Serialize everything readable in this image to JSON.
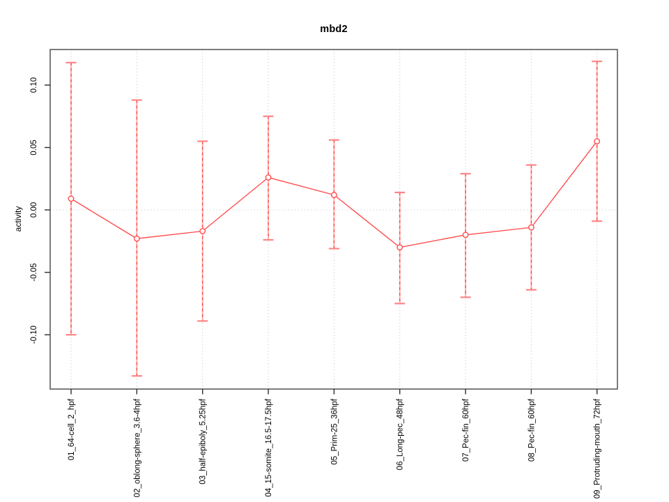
{
  "chart_data": {
    "type": "line",
    "title": "mbd2",
    "xlabel": "",
    "ylabel": "activity",
    "legend": "none",
    "grid": "dotted vertical gridline per category, dotted horizontal line at y=0",
    "ylim": [
      -0.1435,
      0.1285
    ],
    "yticks": [
      0.1,
      0.05,
      0.0,
      -0.05,
      -0.1
    ],
    "ytick_labels": [
      "0.10",
      "0.05",
      "0.00",
      "-0.05",
      "-0.10"
    ],
    "categories": [
      "01_64-cell_2_hpf",
      "02_oblong-sphere_3.6-4hpf",
      "03_half-epiboly_5.25hpf",
      "04_15-somite_16.5-17.5hpf",
      "05_Prim-25_36hpf",
      "06_Long-pec_48hpf",
      "07_Pec-fin_60hpf",
      "08_Pec-fin_60hpf",
      "09_Protruding-mouth_72hpf"
    ],
    "series": [
      {
        "name": "mbd2 activity",
        "marker": "open-circle",
        "values": [
          0.009,
          -0.023,
          -0.017,
          0.026,
          0.012,
          -0.03,
          -0.02,
          -0.014,
          0.055
        ],
        "upper": [
          0.118,
          0.088,
          0.055,
          0.075,
          0.056,
          0.014,
          0.029,
          0.036,
          0.119
        ],
        "lower": [
          -0.1,
          -0.133,
          -0.089,
          -0.024,
          -0.031,
          -0.075,
          -0.07,
          -0.064,
          -0.009
        ]
      }
    ]
  },
  "colors": {
    "background": "#ffffff",
    "line": "#ff4d4d",
    "error_bar_base": "#ffb0b0",
    "error_bar_dash": "#f8433c",
    "cap": "#ff8585",
    "point_stroke": "#ff4d4d",
    "point_fill": "#ffffff",
    "grid": "#d2d2d2",
    "zero_line": "#d8d8d8",
    "box": "#5c5c5c",
    "tick": "#2b2b2b",
    "text": "#000000"
  }
}
